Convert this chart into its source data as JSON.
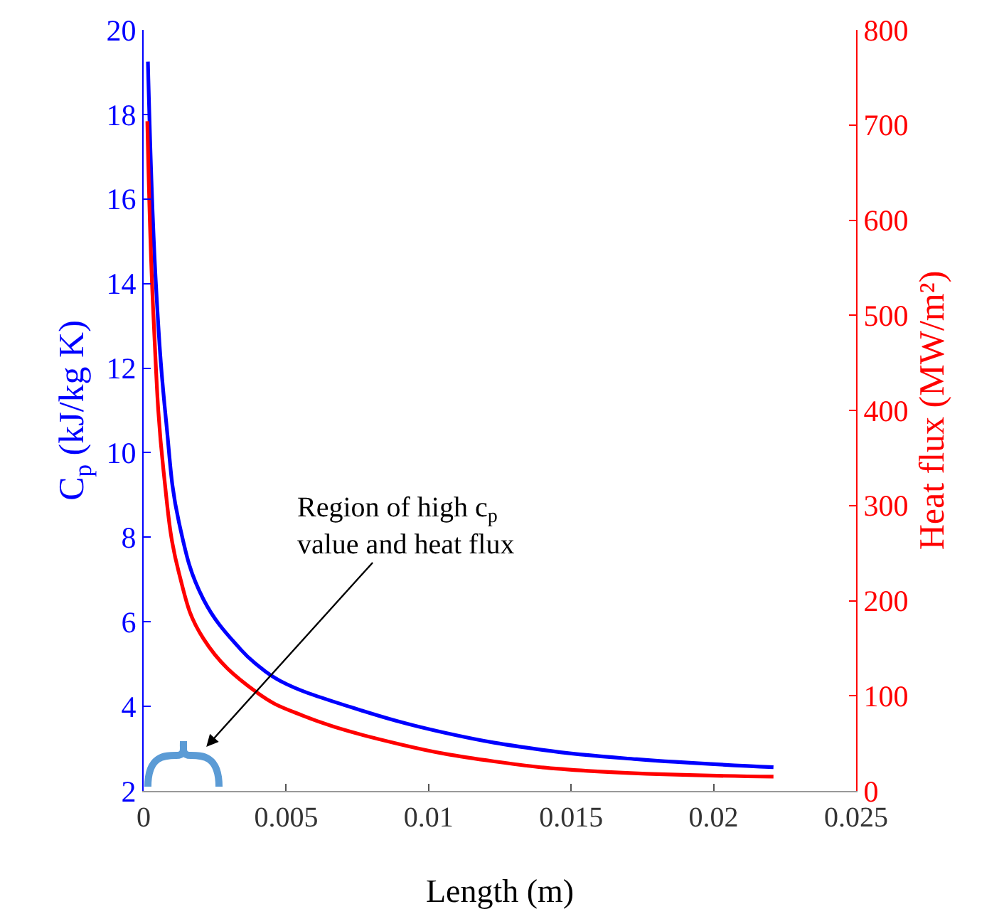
{
  "chart_data": {
    "type": "line",
    "xlabel": "Length (m)",
    "ylabel": "C$_{p}$ (kJ/kg K)",
    "y2label": "Heat flux (MW/m²)",
    "xlim": [
      0,
      0.025
    ],
    "xticks": [
      0,
      0.005,
      0.01,
      0.015,
      0.02,
      0.025
    ],
    "ylim": [
      2,
      20
    ],
    "yticks": [
      2,
      4,
      6,
      8,
      10,
      12,
      14,
      16,
      18,
      20
    ],
    "y2lim": [
      0,
      800
    ],
    "y2ticks": [
      0,
      100,
      200,
      300,
      400,
      500,
      600,
      700,
      800
    ],
    "grid": false,
    "marker": "none",
    "line_style": "solid",
    "series": [
      {
        "color": "#0000ff",
        "x": [
          0.00015,
          0.00043,
          0.00079,
          0.00124,
          0.0021,
          0.0034,
          0.00395,
          0.0048,
          0.00728,
          0.0106,
          0.014,
          0.0173,
          0.0221
        ],
        "values": [
          19.25,
          14.0,
          10.74,
          8.35,
          6.53,
          5.35,
          5.0,
          4.6,
          3.98,
          3.37,
          2.97,
          2.75,
          2.56
        ]
      },
      {
        "color": "#ff0000",
        "axis": "y2",
        "x": [
          0.00013,
          0.00035,
          0.0007,
          0.00124,
          0.0021,
          0.00395,
          0.0056,
          0.009,
          0.0123,
          0.0156,
          0.0221
        ],
        "values": [
          704,
          496,
          336,
          229,
          160,
          104,
          79,
          49,
          31,
          21,
          15
        ]
      }
    ],
    "annotations": [
      "Region of high c$_{p}$\nvalue and heat flux"
    ]
  }
}
